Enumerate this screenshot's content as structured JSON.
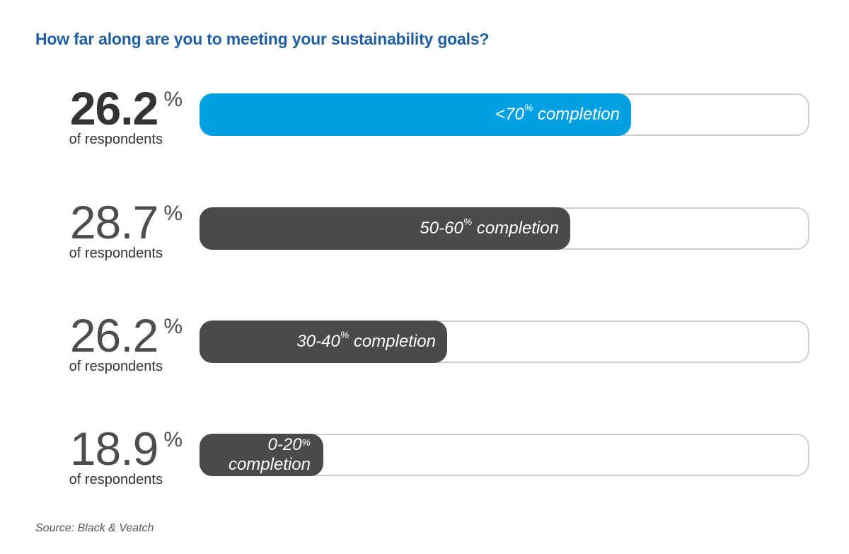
{
  "title": "How far along are you to meeting your sustainability goals?",
  "source": "Source: Black & Veatch",
  "colors": {
    "highlight": "#00a0e3",
    "default": "#4a4a4a",
    "track": "#cfcfcf",
    "title": "#1f5fa0"
  },
  "chart_data": {
    "type": "bar",
    "orientation": "horizontal",
    "title": "How far along are you to meeting your sustainability goals?",
    "categories": [
      "<70% completion",
      "50-60% completion",
      "30-40% completion",
      "0-20% completion"
    ],
    "values": [
      26.2,
      28.7,
      26.2,
      18.9
    ],
    "unit": "%",
    "value_suffix": "of respondents",
    "bars": [
      {
        "value": "26.2",
        "pct_sign": "%",
        "resp_label": "of respondents",
        "label_main": "<70",
        "label_sup": "%",
        "label_tail": " completion",
        "fill_fraction": 0.708,
        "color": "#00a0e3",
        "bold": true,
        "wrap": false
      },
      {
        "value": "28.7",
        "pct_sign": "%",
        "resp_label": "of respondents",
        "label_main": "50-60",
        "label_sup": "%",
        "label_tail": " completion",
        "fill_fraction": 0.608,
        "color": "#4a4a4a",
        "bold": false,
        "wrap": false
      },
      {
        "value": "26.2",
        "pct_sign": "%",
        "resp_label": "of respondents",
        "label_main": "30-40",
        "label_sup": "%",
        "label_tail": " completion",
        "fill_fraction": 0.406,
        "color": "#4a4a4a",
        "bold": false,
        "wrap": false
      },
      {
        "value": "18.9",
        "pct_sign": "%",
        "resp_label": "of respondents",
        "label_main": "0-20",
        "label_sup": "%",
        "label_tail": "completion",
        "fill_fraction": 0.203,
        "color": "#4a4a4a",
        "bold": false,
        "wrap": true
      }
    ]
  }
}
